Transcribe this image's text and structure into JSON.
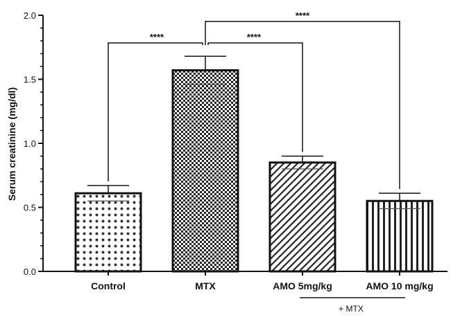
{
  "chart_data": {
    "type": "bar",
    "title": "",
    "xlabel": "",
    "ylabel": "Serum creatinine (mg/dl)",
    "ylim": [
      0,
      2.0
    ],
    "yticks": [
      "0.0",
      "0.5",
      "1.0",
      "1.5",
      "2.0"
    ],
    "categories": [
      "Control",
      "MTX",
      "AMO 5mg/kg",
      "AMO 10 mg/kg"
    ],
    "values": [
      0.61,
      1.57,
      0.85,
      0.55
    ],
    "errors": [
      0.06,
      0.11,
      0.05,
      0.06
    ],
    "patterns": [
      "dots",
      "checker",
      "diagonal",
      "vertical"
    ],
    "significance": [
      {
        "from": 0,
        "to": 1,
        "label": "****"
      },
      {
        "from": 1,
        "to": 2,
        "label": "****"
      },
      {
        "from": 1,
        "to": 3,
        "label": "****"
      }
    ],
    "group_label": {
      "text": "+ MTX",
      "from": 2,
      "to": 3
    },
    "grid": false,
    "colors": {
      "bar_stroke": "#111111",
      "pattern": "#222222"
    }
  }
}
